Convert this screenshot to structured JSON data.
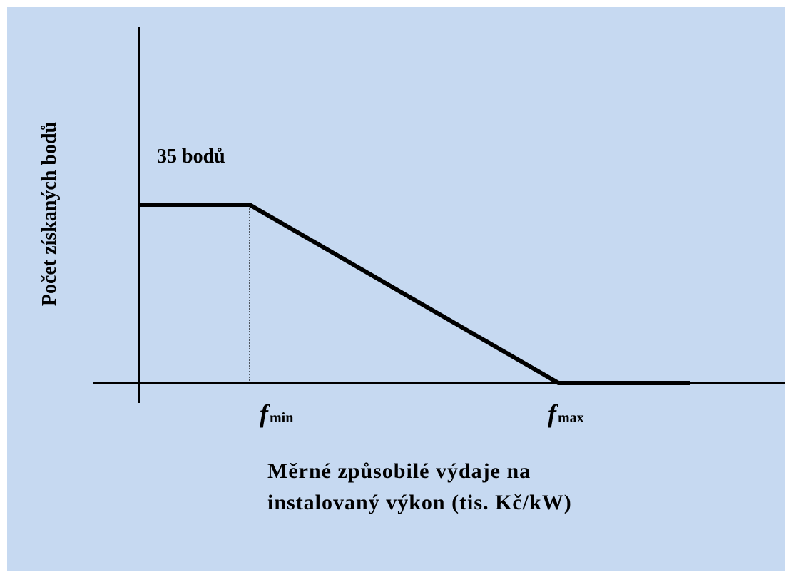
{
  "y_axis_label": "Počet získaných bodů",
  "value_label": "35 bodů",
  "x_ticks": [
    {
      "symbol": "f",
      "subscript": "min"
    },
    {
      "symbol": "f",
      "subscript": "max"
    }
  ],
  "x_axis_label": [
    "Měrné způsobilé výdaje na",
    "instalovaný výkon (tis. Kč/kW)"
  ]
}
